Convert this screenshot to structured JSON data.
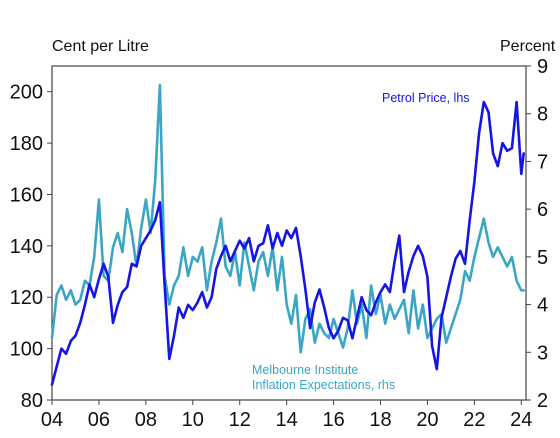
{
  "chart_data": {
    "type": "line",
    "left_axis_label": "Cent per Litre",
    "right_axis_label": "Percent",
    "xlim": [
      2004,
      2024.2
    ],
    "ylim_left": [
      80,
      210
    ],
    "ylim_right": [
      2,
      9
    ],
    "x_ticks": [
      {
        "value": 2004,
        "label": "04"
      },
      {
        "value": 2006,
        "label": "06"
      },
      {
        "value": 2008,
        "label": "08"
      },
      {
        "value": 2010,
        "label": "10"
      },
      {
        "value": 2012,
        "label": "12"
      },
      {
        "value": 2014,
        "label": "14"
      },
      {
        "value": 2016,
        "label": "16"
      },
      {
        "value": 2018,
        "label": "18"
      },
      {
        "value": 2020,
        "label": "20"
      },
      {
        "value": 2022,
        "label": "22"
      },
      {
        "value": 2024,
        "label": "24"
      }
    ],
    "left_ticks": [
      {
        "value": 80,
        "label": "80"
      },
      {
        "value": 100,
        "label": "100"
      },
      {
        "value": 120,
        "label": "120"
      },
      {
        "value": 140,
        "label": "140"
      },
      {
        "value": 160,
        "label": "160"
      },
      {
        "value": 180,
        "label": "180"
      },
      {
        "value": 200,
        "label": "200"
      }
    ],
    "right_ticks": [
      {
        "value": 2,
        "label": "2"
      },
      {
        "value": 3,
        "label": "3"
      },
      {
        "value": 4,
        "label": "4"
      },
      {
        "value": 5,
        "label": "5"
      },
      {
        "value": 6,
        "label": "6"
      },
      {
        "value": 7,
        "label": "7"
      },
      {
        "value": 8,
        "label": "8"
      },
      {
        "value": 9,
        "label": "9"
      }
    ],
    "grid": false,
    "series": [
      {
        "name": "Petrol Price, lhs",
        "axis": "left",
        "color": "#1515e6",
        "x": [
          2004.0,
          2004.2,
          2004.4,
          2004.6,
          2004.8,
          2005.0,
          2005.2,
          2005.4,
          2005.6,
          2005.8,
          2006.0,
          2006.2,
          2006.4,
          2006.6,
          2006.8,
          2007.0,
          2007.2,
          2007.4,
          2007.6,
          2007.8,
          2008.0,
          2008.2,
          2008.4,
          2008.6,
          2008.8,
          2009.0,
          2009.2,
          2009.4,
          2009.6,
          2009.8,
          2010.0,
          2010.2,
          2010.4,
          2010.6,
          2010.8,
          2011.0,
          2011.2,
          2011.4,
          2011.6,
          2011.8,
          2012.0,
          2012.2,
          2012.4,
          2012.6,
          2012.8,
          2013.0,
          2013.2,
          2013.4,
          2013.6,
          2013.8,
          2014.0,
          2014.2,
          2014.4,
          2014.6,
          2014.8,
          2015.0,
          2015.2,
          2015.4,
          2015.6,
          2015.8,
          2016.0,
          2016.2,
          2016.4,
          2016.6,
          2016.8,
          2017.0,
          2017.2,
          2017.4,
          2017.6,
          2017.8,
          2018.0,
          2018.2,
          2018.4,
          2018.6,
          2018.8,
          2019.0,
          2019.2,
          2019.4,
          2019.6,
          2019.8,
          2020.0,
          2020.2,
          2020.4,
          2020.6,
          2020.8,
          2021.0,
          2021.2,
          2021.4,
          2021.6,
          2021.8,
          2022.0,
          2022.2,
          2022.4,
          2022.6,
          2022.8,
          2023.0,
          2023.2,
          2023.4,
          2023.6,
          2023.8,
          2024.0,
          2024.1
        ],
        "values": [
          86,
          93,
          100,
          98,
          103,
          105,
          110,
          117,
          125,
          120,
          127,
          133,
          128,
          110,
          117,
          122,
          124,
          133,
          132,
          140,
          143,
          146,
          150,
          157,
          125,
          96,
          105,
          116,
          112,
          117,
          115,
          118,
          122,
          116,
          120,
          131,
          136,
          140,
          134,
          138,
          142,
          139,
          143,
          134,
          140,
          141,
          148,
          139,
          145,
          140,
          146,
          143,
          147,
          136,
          123,
          108,
          118,
          123,
          116,
          108,
          104,
          107,
          112,
          111,
          104,
          112,
          120,
          115,
          113,
          118,
          122,
          125,
          122,
          134,
          144,
          122,
          130,
          136,
          140,
          136,
          128,
          101,
          92,
          112,
          120,
          128,
          135,
          138,
          133,
          150,
          165,
          184,
          196,
          192,
          176,
          171,
          180,
          177,
          178,
          196,
          168,
          176
        ]
      },
      {
        "name": "Melbourne Institute Inflation Expectations, rhs",
        "axis": "right",
        "color": "#3aa6c4",
        "x": [
          2004.0,
          2004.2,
          2004.4,
          2004.6,
          2004.8,
          2005.0,
          2005.2,
          2005.4,
          2005.6,
          2005.8,
          2006.0,
          2006.2,
          2006.4,
          2006.6,
          2006.8,
          2007.0,
          2007.2,
          2007.4,
          2007.6,
          2007.8,
          2008.0,
          2008.2,
          2008.4,
          2008.6,
          2008.8,
          2009.0,
          2009.2,
          2009.4,
          2009.6,
          2009.8,
          2010.0,
          2010.2,
          2010.4,
          2010.6,
          2010.8,
          2011.0,
          2011.2,
          2011.4,
          2011.6,
          2011.8,
          2012.0,
          2012.2,
          2012.4,
          2012.6,
          2012.8,
          2013.0,
          2013.2,
          2013.4,
          2013.6,
          2013.8,
          2014.0,
          2014.2,
          2014.4,
          2014.6,
          2014.8,
          2015.0,
          2015.2,
          2015.4,
          2015.6,
          2015.8,
          2016.0,
          2016.2,
          2016.4,
          2016.6,
          2016.8,
          2017.0,
          2017.2,
          2017.4,
          2017.6,
          2017.8,
          2018.0,
          2018.2,
          2018.4,
          2018.6,
          2018.8,
          2019.0,
          2019.2,
          2019.4,
          2019.6,
          2019.8,
          2020.0,
          2020.2,
          2020.4,
          2020.6,
          2020.8,
          2021.0,
          2021.2,
          2021.4,
          2021.6,
          2021.8,
          2022.0,
          2022.2,
          2022.4,
          2022.6,
          2022.8,
          2023.0,
          2023.2,
          2023.4,
          2023.6,
          2023.8,
          2024.0,
          2024.1
        ],
        "values": [
          3.3,
          4.2,
          4.4,
          4.1,
          4.3,
          4.0,
          4.1,
          4.5,
          4.4,
          5.0,
          6.2,
          4.6,
          4.5,
          5.2,
          5.5,
          5.1,
          6.0,
          5.5,
          4.8,
          5.6,
          6.2,
          5.5,
          6.6,
          8.6,
          4.6,
          4.0,
          4.4,
          4.6,
          5.2,
          4.6,
          5.0,
          4.9,
          5.2,
          4.3,
          4.9,
          5.3,
          5.8,
          4.8,
          4.6,
          5.1,
          4.4,
          5.3,
          4.8,
          4.3,
          4.9,
          5.1,
          4.6,
          5.2,
          4.3,
          5.0,
          4.0,
          3.6,
          4.2,
          3.0,
          3.7,
          3.9,
          3.2,
          3.6,
          3.4,
          3.3,
          3.7,
          3.4,
          3.1,
          3.5,
          4.3,
          3.6,
          4.0,
          3.3,
          4.4,
          3.8,
          4.2,
          3.6,
          4.0,
          3.7,
          3.9,
          4.1,
          3.4,
          4.3,
          3.5,
          4.0,
          3.3,
          3.5,
          3.7,
          3.8,
          3.2,
          3.5,
          3.8,
          4.1,
          4.7,
          4.5,
          5.0,
          5.4,
          5.8,
          5.3,
          5.0,
          5.2,
          5.0,
          4.8,
          5.0,
          4.5,
          4.3,
          4.3
        ]
      }
    ],
    "annotations": [
      {
        "text": "Petrol Price, lhs",
        "color": "#1515e6"
      },
      {
        "text": "Melbourne Institute",
        "color": "#3aa6c4"
      },
      {
        "text": "Inflation Expectations, rhs",
        "color": "#3aa6c4"
      }
    ]
  }
}
